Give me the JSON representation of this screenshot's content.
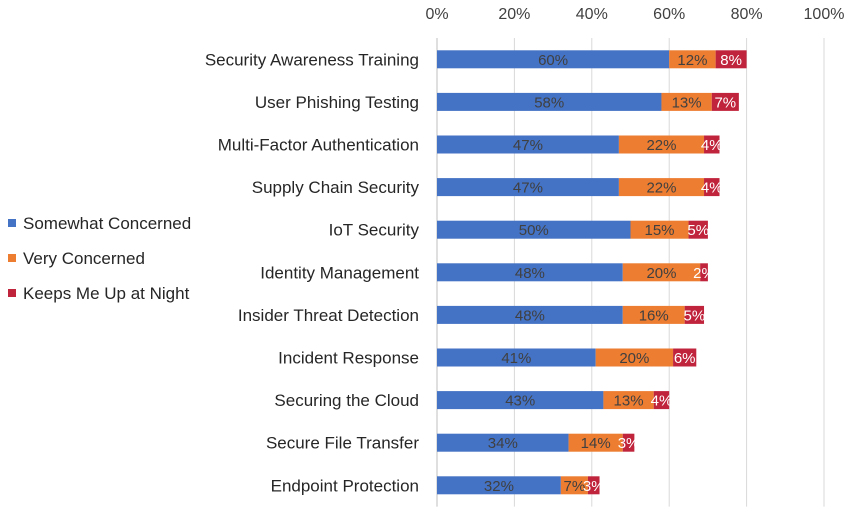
{
  "chart_data": {
    "type": "bar",
    "orientation": "horizontal",
    "stacked": true,
    "xlim": [
      0,
      100
    ],
    "x_ticks": [
      "0%",
      "20%",
      "40%",
      "60%",
      "80%",
      "100%"
    ],
    "x_tick_values": [
      0,
      20,
      40,
      60,
      80,
      100
    ],
    "grid": true,
    "legend_position": "left",
    "categories": [
      "Security Awareness Training",
      "User Phishing Testing",
      "Multi-Factor Authentication",
      "Supply Chain Security",
      "IoT Security",
      "Identity Management",
      "Insider Threat Detection",
      "Incident Response",
      "Securing the Cloud",
      "Secure File Transfer",
      "Endpoint Protection"
    ],
    "series": [
      {
        "name": "Somewhat Concerned",
        "color": "#4472C4",
        "label_color": "#404040",
        "values": [
          60,
          58,
          47,
          47,
          50,
          48,
          48,
          41,
          43,
          34,
          32
        ],
        "labels": [
          "60%",
          "58%",
          "47%",
          "47%",
          "50%",
          "48%",
          "48%",
          "41%",
          "43%",
          "34%",
          "32%"
        ]
      },
      {
        "name": "Very Concerned",
        "color": "#ED7D31",
        "label_color": "#404040",
        "values": [
          12,
          13,
          22,
          22,
          15,
          20,
          16,
          20,
          13,
          14,
          7
        ],
        "labels": [
          "12%",
          "13%",
          "22%",
          "22%",
          "15%",
          "20%",
          "16%",
          "20%",
          "13%",
          "14%",
          "7%"
        ]
      },
      {
        "name": "Keeps Me Up at Night",
        "color": "#C0243C",
        "label_color": "#ffffff",
        "values": [
          8,
          7,
          4,
          4,
          5,
          2,
          5,
          6,
          4,
          3,
          3
        ],
        "labels": [
          "8%",
          "7%",
          "4%",
          "4%",
          "5%",
          "2%",
          "5%",
          "6%",
          "4%",
          "3%",
          "3%"
        ]
      }
    ]
  }
}
